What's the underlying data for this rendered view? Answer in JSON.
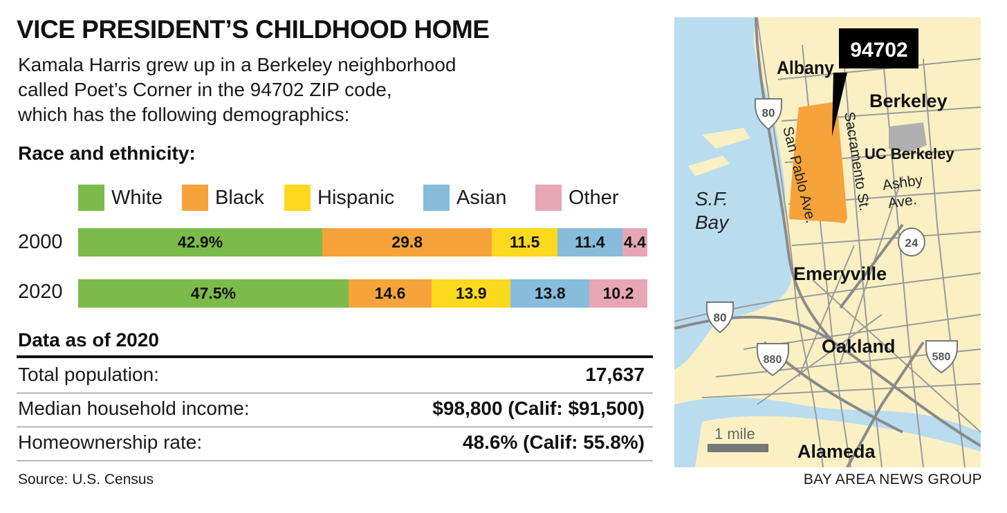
{
  "header": {
    "title": "VICE PRESIDENT’S CHILDHOOD HOME",
    "intro_lines": [
      "Kamala Harris grew up in a Berkeley neighborhood",
      "called Poet’s Corner in the 94702 ZIP code,",
      "which has the following demographics:"
    ]
  },
  "chart_data": {
    "type": "bar",
    "orientation": "horizontal-stacked",
    "title": "Race and ethnicity:",
    "categories": [
      "2000",
      "2020"
    ],
    "series": [
      {
        "name": "White",
        "color": "#7cbb4a",
        "values": [
          42.9,
          47.5
        ],
        "labels": [
          "42.9%",
          "47.5%"
        ]
      },
      {
        "name": "Black",
        "color": "#f6a33b",
        "values": [
          29.8,
          14.6
        ],
        "labels": [
          "29.8",
          "14.6"
        ]
      },
      {
        "name": "Hispanic",
        "color": "#fcd81f",
        "values": [
          11.5,
          13.9
        ],
        "labels": [
          "11.5",
          "13.9"
        ]
      },
      {
        "name": "Asian",
        "color": "#87bcdc",
        "values": [
          11.4,
          13.8
        ],
        "labels": [
          "11.4",
          "13.8"
        ]
      },
      {
        "name": "Other",
        "color": "#e7a6b5",
        "values": [
          4.4,
          10.2
        ],
        "labels": [
          "4.4",
          "10.2"
        ]
      }
    ],
    "xlim": [
      0,
      100
    ],
    "legend": "top"
  },
  "stats": {
    "heading": "Data as of 2020",
    "rows": [
      {
        "label": "Total population:",
        "value": "17,637"
      },
      {
        "label": "Median household income:",
        "value": "$98,800 (Calif: $91,500)"
      },
      {
        "label": "Homeownership rate:",
        "value": "48.6% (Calif: 55.8%)"
      }
    ]
  },
  "map": {
    "callout": "94702",
    "places": {
      "albany": "Albany",
      "berkeley": "Berkeley",
      "uc_berkeley": "UC Berkeley",
      "emeryville": "Emeryville",
      "oakland": "Oakland",
      "alameda": "Alameda"
    },
    "water_line1": "S.F.",
    "water_line2": "Bay",
    "streets": {
      "san_pablo": "San Pablo Ave.",
      "sacramento": "Sacramento St.",
      "ashby1": "Ashby",
      "ashby2": "Ave."
    },
    "shields": {
      "i80_north": "80",
      "i80_south": "80",
      "ca24": "24",
      "i880": "880",
      "i580": "580"
    },
    "scale_label": "1 mile",
    "colors": {
      "land": "#fbf0c4",
      "water": "#b9dcef",
      "roads": "#9a9a9a",
      "zip_area": "#f6a33b",
      "campus": "#b0b0b0"
    }
  },
  "footer": {
    "source": "Source: U.S. Census",
    "credit": "BAY AREA NEWS GROUP"
  }
}
